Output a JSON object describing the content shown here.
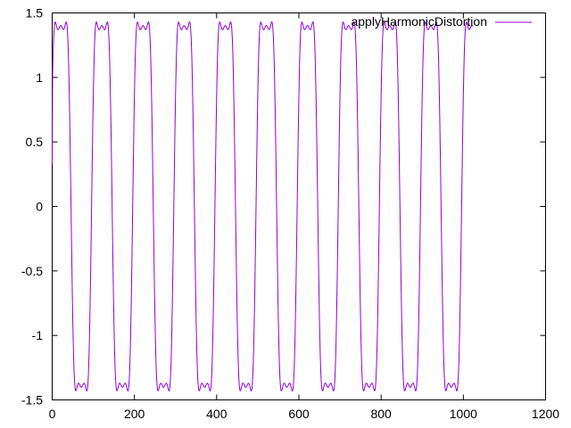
{
  "chart_data": {
    "type": "line",
    "title": "",
    "xlabel": "",
    "ylabel": "",
    "xlim": [
      0,
      1200
    ],
    "ylim": [
      -1.5,
      1.5
    ],
    "x_ticks": [
      0,
      200,
      400,
      600,
      800,
      1000,
      1200
    ],
    "x_tick_labels": [
      "0",
      "200",
      "400",
      "600",
      "800",
      "1000",
      "1200"
    ],
    "y_ticks": [
      -1.5,
      -1,
      -0.5,
      0,
      0.5,
      1,
      1.5
    ],
    "y_tick_labels": [
      "-1.5",
      "-1",
      "-0.5",
      "0",
      "0.5",
      "1",
      "1.5"
    ],
    "grid": false,
    "legend_position": "top-right",
    "series": [
      {
        "name": "applyHarmonicDistortion",
        "color": "#9400d3",
        "x_range": [
          0,
          1023
        ],
        "peak_value": 1.43,
        "trough_value": -1.43,
        "cycle_length": 100,
        "first_value": 0.33
      }
    ]
  }
}
